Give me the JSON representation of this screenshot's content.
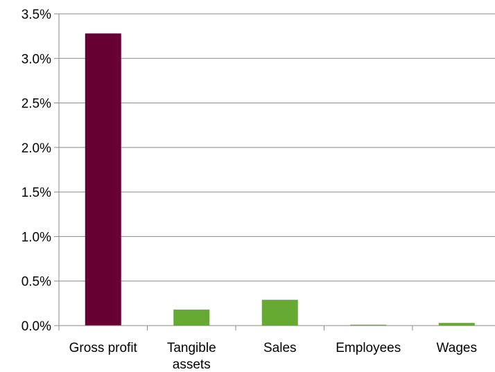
{
  "chart_data": {
    "type": "bar",
    "title": "",
    "xlabel": "",
    "ylabel": "",
    "categories": [
      [
        "Gross profit"
      ],
      [
        "Tangible",
        "assets"
      ],
      [
        "Sales"
      ],
      [
        "Employees"
      ],
      [
        "Wages"
      ]
    ],
    "values": [
      3.28,
      0.18,
      0.29,
      0.01,
      0.03
    ],
    "bar_colors": [
      "#660033",
      "#66aa33",
      "#66aa33",
      "#66aa33",
      "#66aa33"
    ],
    "ylim": [
      0,
      3.5
    ],
    "y_ticks": [
      "0.0%",
      "0.5%",
      "1.0%",
      "1.5%",
      "2.0%",
      "2.5%",
      "3.0%",
      "3.5%"
    ],
    "y_tick_values": [
      0,
      0.5,
      1.0,
      1.5,
      2.0,
      2.5,
      3.0,
      3.5
    ],
    "gridlines": true,
    "legend": "none"
  }
}
